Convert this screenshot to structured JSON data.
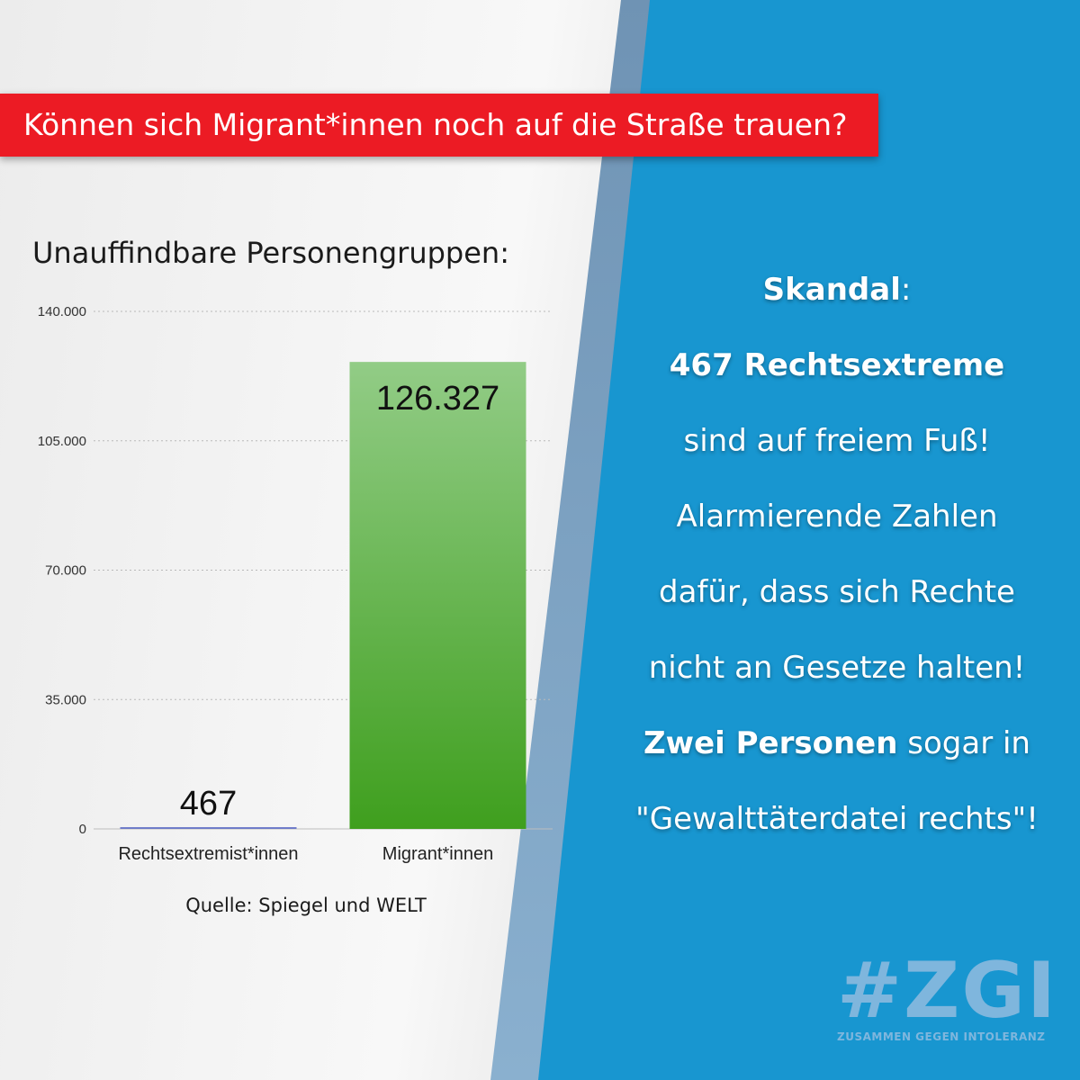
{
  "banner": {
    "text": "Können sich Migrant*innen noch auf die Straße trauen?"
  },
  "chart_data": {
    "type": "bar",
    "title": "Unauffindbare Personengruppen:",
    "categories": [
      "Rechtsextremist*innen",
      "Migrant*innen"
    ],
    "values": [
      467,
      126327
    ],
    "value_labels": [
      "467",
      "126.327"
    ],
    "yticks": [
      "0",
      "35.000",
      "70.000",
      "105.000",
      "140.000"
    ],
    "ylim": [
      0,
      140000
    ],
    "grid": true,
    "bar_colors": [
      "#6a78c8",
      "#4aa630"
    ]
  },
  "source": "Quelle: Spiegel und WELT",
  "statement": {
    "l1_bold": "Skandal",
    "l1_rest": ":",
    "l2_bold": "467 Rechtsextreme",
    "l3": "sind auf freiem Fuß!",
    "l4": "Alarmierende Zahlen",
    "l5": "dafür, dass sich Rechte",
    "l6": "nicht an Gesetze halten!",
    "l7_bold": "Zwei Personen",
    "l7_rest": " sogar in",
    "l8": "\"Gewalttäterdatei rechts\"!"
  },
  "logo": {
    "hashtag": "#ZGI",
    "subtitle": "ZUSAMMEN GEGEN INTOLERANZ"
  }
}
